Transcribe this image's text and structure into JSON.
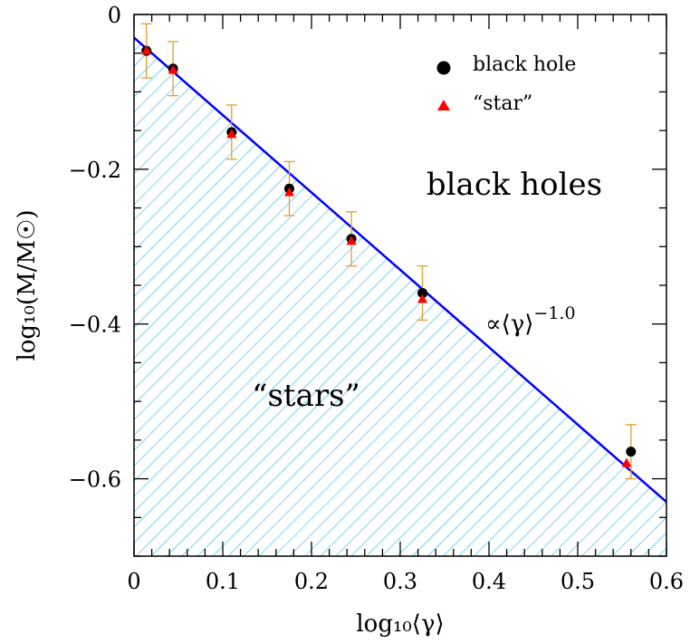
{
  "chart_data": {
    "type": "scatter",
    "xlabel": "log₁₀⟨γ⟩",
    "ylabel": "log₁₀(M/M☉)",
    "xlim": [
      0,
      0.6
    ],
    "ylim": [
      -0.7,
      0
    ],
    "xticks": [
      0,
      0.1,
      0.2,
      0.3,
      0.4,
      0.5,
      0.6
    ],
    "xtick_labels": [
      "0",
      "0.1",
      "0.2",
      "0.3",
      "0.4",
      "0.5",
      "0.6"
    ],
    "yticks": [
      0,
      -0.2,
      -0.4,
      -0.6
    ],
    "ytick_labels": [
      "0",
      "−0.2",
      "−0.4",
      "−0.6"
    ],
    "legend_position": "top-right",
    "series": [
      {
        "name": "black hole",
        "marker": "circle",
        "color": "#000000",
        "x": [
          0.014,
          0.044,
          0.11,
          0.175,
          0.245,
          0.325,
          0.56
        ],
        "y": [
          -0.047,
          -0.07,
          -0.152,
          -0.225,
          -0.29,
          -0.36,
          -0.565
        ],
        "yerr": [
          0.035,
          0.035,
          0.035,
          0.035,
          0.035,
          0.035,
          0.035
        ]
      },
      {
        "name": "“star”",
        "marker": "triangle",
        "color": "#ff0000",
        "x": [
          0.014,
          0.044,
          0.11,
          0.175,
          0.245,
          0.325,
          0.555
        ],
        "y": [
          -0.047,
          -0.072,
          -0.155,
          -0.23,
          -0.293,
          -0.368,
          -0.58
        ]
      }
    ],
    "fit_line": {
      "x": [
        0,
        0.6
      ],
      "y": [
        -0.03,
        -0.63
      ],
      "color": "#0000ff",
      "label": "∝⟨γ⟩",
      "exponent": "−1.0"
    },
    "regions": {
      "above_label": "black holes",
      "below_label": "“stars”",
      "hatch_color": "#29b6e6"
    },
    "errorbar_color": "#e0a030"
  }
}
